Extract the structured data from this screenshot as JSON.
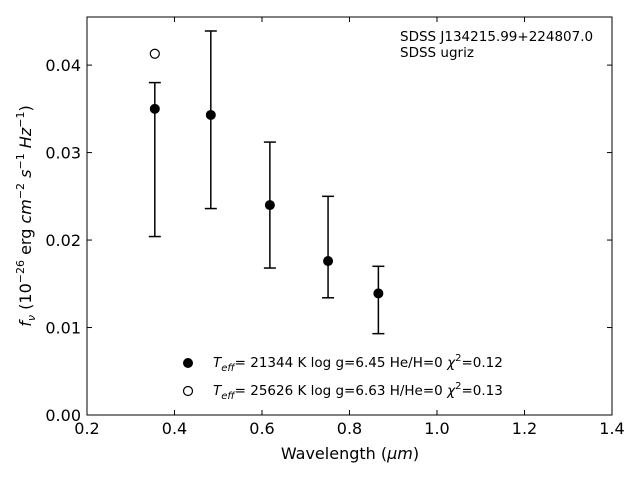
{
  "chart_data": {
    "type": "scatter",
    "xlabel_main": "Wavelength (",
    "xlabel_unit": "μm",
    "xlabel_end": ")",
    "ylabel": "f_ν (10^-26 erg cm^-2 s^-1 Hz^-1)",
    "xlim": [
      0.2,
      1.4
    ],
    "ylim": [
      0.0,
      0.0455
    ],
    "x_ticks": [
      {
        "v": 0.2,
        "label": "0.2"
      },
      {
        "v": 0.4,
        "label": "0.4"
      },
      {
        "v": 0.6,
        "label": "0.6"
      },
      {
        "v": 0.8,
        "label": "0.8"
      },
      {
        "v": 1.0,
        "label": "1.0"
      },
      {
        "v": 1.2,
        "label": "1.2"
      },
      {
        "v": 1.4,
        "label": "1.4"
      }
    ],
    "y_ticks": [
      {
        "v": 0.0,
        "label": "0.00"
      },
      {
        "v": 0.01,
        "label": "0.01"
      },
      {
        "v": 0.02,
        "label": "0.02"
      },
      {
        "v": 0.03,
        "label": "0.03"
      },
      {
        "v": 0.04,
        "label": "0.04"
      }
    ],
    "annotations": [
      "SDSS J134215.99+224807.0",
      "SDSS ugriz"
    ],
    "series": [
      {
        "name": "T_eff= 21344 K  log g=6.45  He/H=0  χ²=0.12",
        "marker": "filled-circle",
        "color": "#000000",
        "points": [
          {
            "x": 0.355,
            "y": 0.035,
            "err_lo": 0.0204,
            "err_hi": 0.038
          },
          {
            "x": 0.483,
            "y": 0.0343,
            "err_lo": 0.0236,
            "err_hi": 0.0439
          },
          {
            "x": 0.618,
            "y": 0.024,
            "err_lo": 0.0168,
            "err_hi": 0.0312
          },
          {
            "x": 0.751,
            "y": 0.0176,
            "err_lo": 0.0134,
            "err_hi": 0.025
          },
          {
            "x": 0.866,
            "y": 0.0139,
            "err_lo": 0.0093,
            "err_hi": 0.017
          }
        ]
      },
      {
        "name": "T_eff= 25626 K  log g=6.63  H/He=0  χ²=0.13",
        "marker": "open-circle",
        "color": "#000000",
        "points": [
          {
            "x": 0.355,
            "y": 0.0413
          }
        ]
      }
    ],
    "legend": [
      {
        "prefix": "T",
        "sub": "eff",
        "text": "= 21344 K  log g=6.45  He/H=0  ",
        "chi": "χ",
        "chi_sup": "2",
        "chi_val": "=0.12"
      },
      {
        "prefix": "T",
        "sub": "eff",
        "text": "= 25626 K  log g=6.63  H/He=0  ",
        "chi": "χ",
        "chi_sup": "2",
        "chi_val": "=0.13"
      }
    ],
    "legend_loc": "lower-center",
    "grid": false
  }
}
